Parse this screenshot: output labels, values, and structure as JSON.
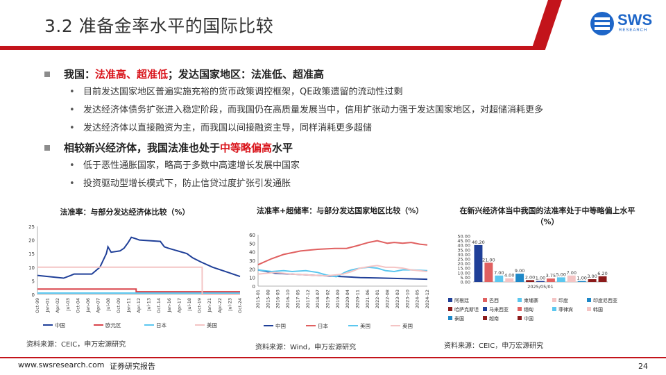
{
  "header": {
    "title": "3.2 准备金率水平的国际比较",
    "logo_text": "SWS",
    "logo_sub": "RESEARCH"
  },
  "bullets": {
    "b1": {
      "seg_a": "我国：",
      "seg_b": "法准高、超准低",
      "seg_c": "；发达国家地区：法准低、超准高"
    },
    "b1_subs": [
      "目前发达国家地区普遍实施充裕的货币政策调控框架，QE政策遗留的流动性过剩",
      "发达经济体债务扩张进入稳定阶段，而我国仍在高质量发展当中，信用扩张动力强于发达国家地区，对超储消耗更多",
      "发达经济体以直接融资为主，而我国以间接融资主导，同样消耗更多超储"
    ],
    "b2": {
      "seg_a": "相较新兴经济体，我国法准也处于",
      "seg_b": "中等略偏高",
      "seg_c": "水平"
    },
    "b2_subs": [
      "低于恶性通胀国家，略高于多数中高速增长发展中国家",
      "投资驱动型增长模式下，防止信贷过度扩张引发通胀"
    ]
  },
  "chart_data": [
    {
      "type": "line",
      "title": "法准率：与部分发达经济体比较（%）",
      "x_labels": [
        "Oct-99",
        "Jan-01",
        "Apr-02",
        "Jul-03",
        "Oct-04",
        "Jan-06",
        "Apr-07",
        "Jul-08",
        "Oct-09",
        "Jan-11",
        "Apr-12",
        "Jul-13",
        "Oct-14",
        "Jan-16",
        "Apr-17",
        "Jul-18",
        "Oct-19",
        "Jan-21",
        "Apr-22",
        "Jul-23",
        "Oct-24"
      ],
      "ylim": [
        0,
        25
      ],
      "yticks": [
        0,
        5,
        10,
        15,
        20,
        25
      ],
      "series": [
        {
          "name": "中国",
          "color": "#1f3f98",
          "x": [
            1999.75,
            2003.0,
            2003.9,
            2004.3,
            2006.5,
            2007.5,
            2008.3,
            2008.5,
            2008.9,
            2010.0,
            2010.5,
            2011.0,
            2011.4,
            2011.9,
            2012.4,
            2015.0,
            2015.5,
            2016.0,
            2018.3,
            2019.0,
            2020.0,
            2021.5,
            2022.5,
            2023.5,
            2024.5,
            2024.9
          ],
          "y": [
            7,
            6,
            7,
            7.5,
            7.5,
            10,
            15,
            17.5,
            15.5,
            16,
            17,
            19,
            21,
            20.5,
            20,
            19.5,
            17.5,
            17,
            15,
            13.5,
            12,
            10,
            9,
            8,
            7,
            6.6
          ]
        },
        {
          "name": "欧元区",
          "color": "#d9434a",
          "x": [
            1999.75,
            2012.0,
            2012.01,
            2024.9
          ],
          "y": [
            2,
            2,
            1,
            1
          ]
        },
        {
          "name": "日本",
          "color": "#5bc7ef",
          "x": [
            1999.75,
            2024.9
          ],
          "y": [
            0.5,
            0.5
          ]
        },
        {
          "name": "美国",
          "color": "#f4c4c4",
          "x": [
            1999.75,
            2020.2,
            2020.21,
            2024.9
          ],
          "y": [
            10,
            10,
            0,
            0
          ]
        }
      ]
    },
    {
      "type": "line",
      "title": "法准率+超储率：与部分发达国家地区比较（%）",
      "x_labels": [
        "2015-01",
        "2015-08",
        "2016-03",
        "2016-10",
        "2017-05",
        "2017-12",
        "2018-07",
        "2019-02",
        "2019-09",
        "2020-04",
        "2020-11",
        "2021-06",
        "2022-01",
        "2022-08",
        "2023-03",
        "2023-10",
        "2024-05",
        "2024-12"
      ],
      "ylim": [
        0,
        60
      ],
      "yticks": [
        0,
        10,
        20,
        30,
        40,
        50,
        60
      ],
      "series": [
        {
          "name": "中国",
          "color": "#1f3f98",
          "x": [
            2015.0,
            2016.0,
            2017.0,
            2018.0,
            2019.0,
            2020.0,
            2021.0,
            2022.0,
            2023.0,
            2024.0,
            2024.95
          ],
          "y": [
            19,
            15,
            14,
            13,
            12,
            11,
            10,
            9.5,
            9,
            8.5,
            8
          ]
        },
        {
          "name": "日本",
          "color": "#e06060",
          "x": [
            2015.0,
            2015.8,
            2016.5,
            2017.5,
            2018.5,
            2019.5,
            2020.2,
            2020.8,
            2021.5,
            2022.0,
            2022.6,
            2023.0,
            2023.5,
            2024.0,
            2024.5,
            2024.95
          ],
          "y": [
            25,
            32,
            37,
            41,
            43,
            44,
            44,
            47,
            51,
            53,
            50,
            51,
            50,
            51,
            49,
            48
          ]
        },
        {
          "name": "美国",
          "color": "#5bc7ef",
          "x": [
            2015.0,
            2015.8,
            2016.5,
            2017.0,
            2017.8,
            2018.5,
            2019.0,
            2019.6,
            2020.2,
            2020.5,
            2021.0,
            2021.5,
            2022.0,
            2022.5,
            2023.0,
            2023.5,
            2024.0,
            2024.95
          ],
          "y": [
            19,
            17,
            18,
            17,
            18,
            16,
            13,
            11,
            17,
            19,
            21,
            22,
            21,
            18,
            17,
            19,
            19,
            18
          ]
        },
        {
          "name": "英国",
          "color": "#f4c4c4",
          "x": [
            2015.0,
            2016.0,
            2017.0,
            2018.0,
            2019.0,
            2020.0,
            2020.5,
            2021.0,
            2021.6,
            2022.0,
            2022.5,
            2023.0,
            2023.5,
            2024.0,
            2024.95
          ],
          "y": [
            14,
            16,
            14,
            13,
            12,
            14,
            17,
            21,
            23,
            24,
            22,
            22,
            21,
            19,
            17
          ]
        }
      ]
    },
    {
      "type": "bar",
      "title": "在新兴经济体当中我国的法准率处于中等略偏上水平（%）",
      "xlabel": "2025/05/01",
      "ylim": [
        0,
        50
      ],
      "yticks": [
        0,
        5,
        10,
        15,
        20,
        25,
        30,
        35,
        40,
        45,
        50
      ],
      "categories": [
        "阿根廷",
        "巴西",
        "柬埔寨",
        "印度",
        "印度尼西亚",
        "哈萨克斯坦",
        "马来西亚",
        "缅甸",
        "菲律宾",
        "韩国",
        "泰国",
        "越南",
        "中国"
      ],
      "values": [
        40.2,
        21.0,
        7.0,
        4.0,
        9.0,
        2.0,
        1.0,
        3.75,
        5.0,
        7.0,
        1.0,
        3.0,
        6.2
      ],
      "value_labels": [
        "40.20",
        "21.00",
        "7.00",
        "4.00",
        "9.00",
        "2.00",
        "1.00",
        "3.75",
        "5.00",
        "7.00",
        "1.00",
        "3.00",
        "6.20"
      ],
      "colors": [
        "#1f3f98",
        "#e06060",
        "#5bc7ef",
        "#f4c4c4",
        "#1e88c8",
        "#8b1a1a",
        "#1f3f98",
        "#e06060",
        "#5bc7ef",
        "#f4c4c4",
        "#1e88c8",
        "#8b1a1a",
        "#8b1a1a"
      ]
    }
  ],
  "sources": {
    "s1": "资料来源：CEIC，申万宏源研究",
    "s2": "资料来源：Wind，申万宏源研究",
    "s3": "资料来源：CEIC，申万宏源研究"
  },
  "footer": {
    "website": "www.swsresearch.com",
    "label": "证券研究报告",
    "page_number": "24"
  }
}
